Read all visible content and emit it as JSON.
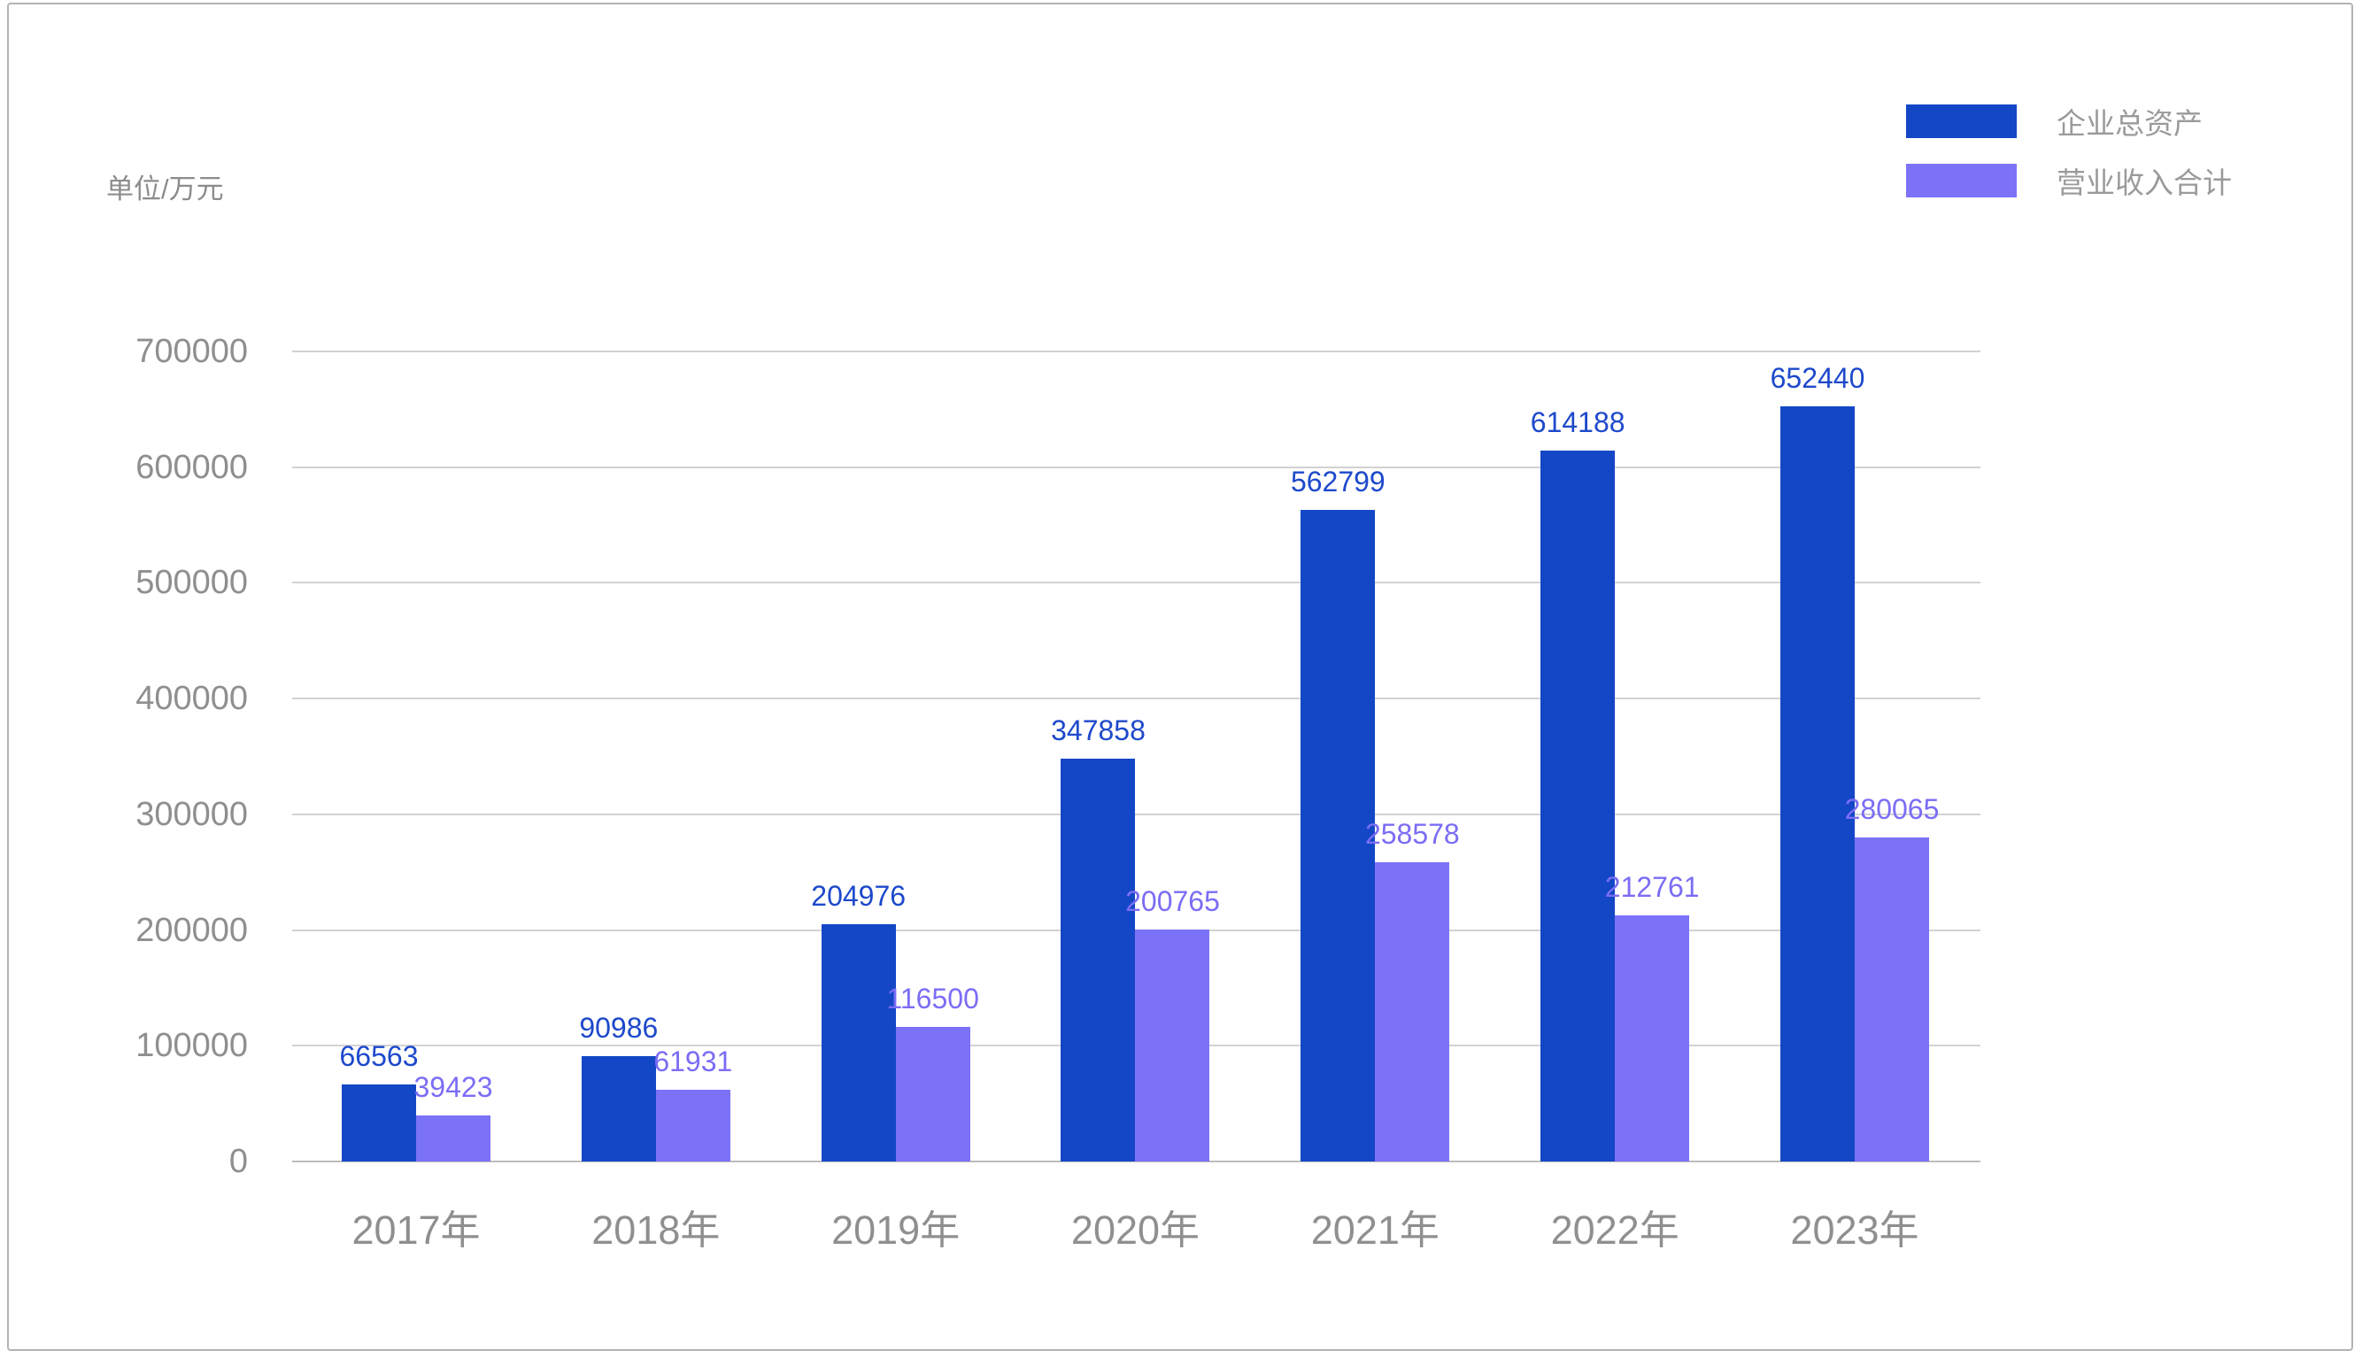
{
  "unit_label": "单位/万元",
  "chart_data": {
    "type": "bar",
    "title": "",
    "xlabel": "",
    "ylabel": "单位/万元",
    "grid": true,
    "legend_position": "top-right",
    "categories": [
      "2017年",
      "2018年",
      "2019年",
      "2020年",
      "2021年",
      "2022年",
      "2023年"
    ],
    "series": [
      {
        "name": "企业总资产",
        "slug": "total-assets",
        "color": "#1347c6",
        "label_color": "#1d49cb",
        "values": [
          66563,
          90986,
          204976,
          347858,
          562799,
          614188,
          652440
        ]
      },
      {
        "name": "营业收入合计",
        "slug": "operating-revenue",
        "color": "#7b72f7",
        "label_color": "#7b6df5",
        "values": [
          39423,
          61931,
          116500,
          200765,
          258578,
          212761,
          280065
        ]
      }
    ],
    "y_axis": {
      "min": 0,
      "max": 700000,
      "tick_step": 100000,
      "tick_labels": [
        "0",
        "100000",
        "200000",
        "300000",
        "400000",
        "500000",
        "600000",
        "700000"
      ]
    },
    "ylim": [
      0,
      700000
    ]
  },
  "colors": {
    "axis_text": "#8f8f8f",
    "grid_line": "#d2d2d2",
    "legend_text": "#9a9a9a",
    "frame_border": "#b3b3b3",
    "background": "#ffffff"
  }
}
